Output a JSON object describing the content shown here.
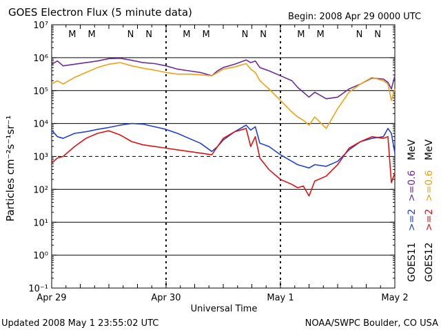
{
  "header": {
    "title": "GOES Electron Flux (5 minute data)",
    "begin": "Begin: 2008 Apr 29 0000 UTC"
  },
  "footer": {
    "updated": "Updated 2008 May  1 23:55:02 UTC",
    "credit": "NOAA/SWPC Boulder, CO USA"
  },
  "axes": {
    "ylabel": "Particles cm⁻²s⁻¹sr⁻¹",
    "xlabel": "Universal Time",
    "x_ticks": [
      "Apr 29",
      "Apr 30",
      "May 1",
      "May 2"
    ],
    "y_ticks": [
      "10⁻¹",
      "10⁰",
      "10¹",
      "10²",
      "10³",
      "10⁴",
      "10⁵",
      "10⁶",
      "10⁷"
    ]
  },
  "legend": {
    "sat1": "GOES11",
    "sat2": "GOES12",
    "s1_ch1": ">=2",
    "s1_ch2": ">=0.6",
    "s2_ch1": ">=2",
    "s2_ch2": ">=0.6",
    "unit": "MeV"
  },
  "colors": {
    "g11_2mev": "#1f3fd8",
    "g11_06mev": "#6a2a9a",
    "g12_2mev": "#e01010",
    "g12_06mev": "#f0a010",
    "marker_n": "#1f3fd8",
    "marker_m": "#e01010"
  },
  "markers": [
    {
      "label": "M",
      "x": 0.18,
      "sat": "g11"
    },
    {
      "label": "M",
      "x": 0.35,
      "sat": "g12"
    },
    {
      "label": "N",
      "x": 0.69,
      "sat": "g11"
    },
    {
      "label": "N",
      "x": 0.85,
      "sat": "g12"
    },
    {
      "label": "M",
      "x": 1.18,
      "sat": "g11"
    },
    {
      "label": "M",
      "x": 1.35,
      "sat": "g12"
    },
    {
      "label": "N",
      "x": 1.69,
      "sat": "g11"
    },
    {
      "label": "N",
      "x": 1.85,
      "sat": "g12"
    },
    {
      "label": "M",
      "x": 2.18,
      "sat": "g11"
    },
    {
      "label": "M",
      "x": 2.35,
      "sat": "g12"
    },
    {
      "label": "N",
      "x": 2.69,
      "sat": "g11"
    },
    {
      "label": "N",
      "x": 2.85,
      "sat": "g12"
    }
  ],
  "chart_data": {
    "type": "line",
    "title": "GOES Electron Flux (5 minute data)",
    "xlabel": "Universal Time",
    "ylabel": "Particles cm⁻²s⁻¹sr⁻¹",
    "x_unit": "days since 2008 Apr 29 0000 UTC",
    "xlim": [
      0,
      3
    ],
    "ylim_log10": [
      -1,
      7
    ],
    "log_scale": true,
    "threshold_log10": 3,
    "series": [
      {
        "name": "GOES11 >=0.6 MeV",
        "key": "g11_06mev",
        "x": [
          0,
          0.05,
          0.1,
          0.2,
          0.3,
          0.4,
          0.5,
          0.6,
          0.7,
          0.8,
          0.9,
          1.0,
          1.1,
          1.2,
          1.3,
          1.4,
          1.45,
          1.5,
          1.6,
          1.7,
          1.74,
          1.78,
          1.82,
          1.9,
          2.0,
          2.1,
          2.15,
          2.2,
          2.25,
          2.3,
          2.4,
          2.5,
          2.6,
          2.7,
          2.8,
          2.9,
          2.94,
          2.97,
          3.0
        ],
        "y": [
          5.8,
          5.9,
          5.75,
          5.8,
          5.85,
          5.9,
          5.97,
          5.98,
          5.92,
          5.85,
          5.82,
          5.75,
          5.65,
          5.6,
          5.55,
          5.45,
          5.6,
          5.7,
          5.8,
          5.93,
          5.85,
          5.9,
          5.7,
          5.6,
          5.45,
          5.3,
          5.1,
          4.95,
          4.8,
          4.95,
          4.75,
          4.8,
          5.05,
          5.2,
          5.38,
          5.35,
          5.25,
          5.05,
          5.45
        ]
      },
      {
        "name": "GOES12 >=0.6 MeV",
        "key": "g12_06mev",
        "x": [
          0,
          0.05,
          0.1,
          0.2,
          0.3,
          0.4,
          0.5,
          0.6,
          0.7,
          0.8,
          0.9,
          1.0,
          1.1,
          1.2,
          1.3,
          1.4,
          1.45,
          1.5,
          1.6,
          1.7,
          1.74,
          1.78,
          1.82,
          1.9,
          2.0,
          2.1,
          2.15,
          2.2,
          2.25,
          2.3,
          2.4,
          2.5,
          2.6,
          2.7,
          2.8,
          2.9,
          2.94,
          2.97,
          3.0
        ],
        "y": [
          5.2,
          5.3,
          5.2,
          5.4,
          5.55,
          5.7,
          5.8,
          5.85,
          5.75,
          5.68,
          5.62,
          5.55,
          5.5,
          5.5,
          5.48,
          5.45,
          5.55,
          5.65,
          5.72,
          5.82,
          5.65,
          5.55,
          5.3,
          5.05,
          4.7,
          4.35,
          4.2,
          4.1,
          3.95,
          4.2,
          3.85,
          4.45,
          4.95,
          5.2,
          5.4,
          5.3,
          5.2,
          4.7,
          5.05
        ]
      },
      {
        "name": "GOES11 >=2 MeV",
        "key": "g11_2mev",
        "x": [
          0,
          0.05,
          0.1,
          0.2,
          0.3,
          0.4,
          0.5,
          0.6,
          0.7,
          0.8,
          0.9,
          1.0,
          1.1,
          1.2,
          1.3,
          1.4,
          1.45,
          1.5,
          1.6,
          1.7,
          1.74,
          1.78,
          1.82,
          1.9,
          2.0,
          2.1,
          2.15,
          2.2,
          2.25,
          2.3,
          2.4,
          2.5,
          2.6,
          2.7,
          2.8,
          2.9,
          2.94,
          2.97,
          3.0
        ],
        "y": [
          3.8,
          3.6,
          3.55,
          3.7,
          3.75,
          3.82,
          3.88,
          3.95,
          4.0,
          3.98,
          3.9,
          3.82,
          3.7,
          3.55,
          3.4,
          3.15,
          3.3,
          3.5,
          3.75,
          3.95,
          3.8,
          3.9,
          3.4,
          3.3,
          3.05,
          2.85,
          2.75,
          2.7,
          2.65,
          2.75,
          2.7,
          2.85,
          3.2,
          3.45,
          3.55,
          3.6,
          3.85,
          3.7,
          3.1
        ]
      },
      {
        "name": "GOES12 >=2 MeV",
        "key": "g12_2mev",
        "x": [
          0,
          0.05,
          0.1,
          0.2,
          0.3,
          0.4,
          0.5,
          0.6,
          0.7,
          0.8,
          0.9,
          1.0,
          1.1,
          1.2,
          1.3,
          1.4,
          1.45,
          1.5,
          1.6,
          1.7,
          1.74,
          1.78,
          1.82,
          1.9,
          2.0,
          2.1,
          2.15,
          2.2,
          2.25,
          2.3,
          2.4,
          2.5,
          2.6,
          2.7,
          2.8,
          2.9,
          2.94,
          2.97,
          3.0
        ],
        "y": [
          2.8,
          2.95,
          3.0,
          3.3,
          3.55,
          3.7,
          3.78,
          3.65,
          3.45,
          3.35,
          3.3,
          3.25,
          3.2,
          3.15,
          3.1,
          3.05,
          3.3,
          3.55,
          3.75,
          3.85,
          3.3,
          3.6,
          2.95,
          2.6,
          2.3,
          2.15,
          2.05,
          2.1,
          1.8,
          2.25,
          2.4,
          2.75,
          3.25,
          3.45,
          3.6,
          3.55,
          3.6,
          2.2,
          2.5
        ]
      }
    ]
  }
}
